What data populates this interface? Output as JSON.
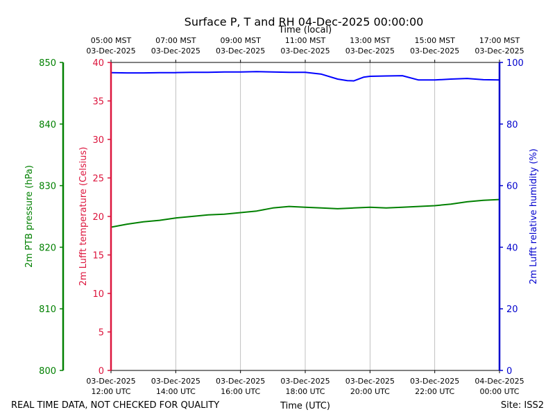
{
  "chart_data": {
    "type": "line",
    "title": "Surface P, T and RH 04-Dec-2025 00:00:00",
    "top_axis_label": "Time (local)",
    "bottom_axis_label": "Time (UTC)",
    "footer_left": "REAL TIME DATA, NOT CHECKED FOR QUALITY",
    "footer_right": "Site: ISS2",
    "grid": true,
    "x_range_utc_hours": [
      12,
      24
    ],
    "top_ticks": [
      {
        "t": 12,
        "line1": "05:00 MST",
        "line2": "03-Dec-2025"
      },
      {
        "t": 14,
        "line1": "07:00 MST",
        "line2": "03-Dec-2025"
      },
      {
        "t": 16,
        "line1": "09:00 MST",
        "line2": "03-Dec-2025"
      },
      {
        "t": 18,
        "line1": "11:00 MST",
        "line2": "03-Dec-2025"
      },
      {
        "t": 20,
        "line1": "13:00 MST",
        "line2": "03-Dec-2025"
      },
      {
        "t": 22,
        "line1": "15:00 MST",
        "line2": "03-Dec-2025"
      },
      {
        "t": 24,
        "line1": "17:00 MST",
        "line2": "03-Dec-2025"
      }
    ],
    "bottom_ticks": [
      {
        "t": 12,
        "line1": "03-Dec-2025",
        "line2": "12:00 UTC"
      },
      {
        "t": 14,
        "line1": "03-Dec-2025",
        "line2": "14:00 UTC"
      },
      {
        "t": 16,
        "line1": "03-Dec-2025",
        "line2": "16:00 UTC"
      },
      {
        "t": 18,
        "line1": "03-Dec-2025",
        "line2": "18:00 UTC"
      },
      {
        "t": 20,
        "line1": "03-Dec-2025",
        "line2": "20:00 UTC"
      },
      {
        "t": 22,
        "line1": "03-Dec-2025",
        "line2": "22:00 UTC"
      },
      {
        "t": 24,
        "line1": "04-Dec-2025",
        "line2": "00:00 UTC"
      }
    ],
    "axes": {
      "pressure": {
        "label": "2m PTB pressure (hPa)",
        "range": [
          800,
          850
        ],
        "ticks": [
          800,
          810,
          820,
          830,
          840,
          850
        ],
        "color": "#008000"
      },
      "temperature": {
        "label": "2m Lufft temperature (Celsius)",
        "range": [
          0,
          40
        ],
        "ticks": [
          0,
          5,
          10,
          15,
          20,
          25,
          30,
          35,
          40
        ],
        "color": "#dc143c"
      },
      "humidity": {
        "label": "2m Lufft relative humidity (%)",
        "range": [
          0,
          100
        ],
        "ticks": [
          0,
          20,
          40,
          60,
          80,
          100
        ],
        "color": "#0000cd"
      }
    },
    "series": [
      {
        "name": "2m Lufft temperature (Celsius)",
        "axis": "temperature",
        "color": "#008000",
        "x": [
          12.0,
          12.5,
          13.0,
          13.5,
          14.0,
          14.5,
          15.0,
          15.5,
          16.0,
          16.5,
          17.0,
          17.5,
          18.0,
          18.5,
          19.0,
          19.5,
          20.0,
          20.5,
          21.0,
          21.5,
          22.0,
          22.5,
          23.0,
          23.5,
          24.0
        ],
        "values": [
          18.6,
          19.0,
          19.3,
          19.5,
          19.8,
          20.0,
          20.2,
          20.3,
          20.5,
          20.7,
          21.1,
          21.3,
          21.2,
          21.1,
          21.0,
          21.1,
          21.2,
          21.1,
          21.2,
          21.3,
          21.4,
          21.6,
          21.9,
          22.1,
          22.2
        ]
      },
      {
        "name": "2m Lufft relative humidity (%)",
        "axis": "humidity",
        "color": "#0000ff",
        "x": [
          12.0,
          12.5,
          13.0,
          13.5,
          14.0,
          14.5,
          15.0,
          15.5,
          16.0,
          16.5,
          17.0,
          17.5,
          18.0,
          18.5,
          19.0,
          19.3,
          19.5,
          19.8,
          20.0,
          20.5,
          21.0,
          21.5,
          22.0,
          22.5,
          23.0,
          23.5,
          24.0
        ],
        "values": [
          96.7,
          96.6,
          96.6,
          96.7,
          96.7,
          96.8,
          96.8,
          96.9,
          96.9,
          97.0,
          96.9,
          96.8,
          96.8,
          96.2,
          94.6,
          94.1,
          94.0,
          95.2,
          95.5,
          95.6,
          95.7,
          94.3,
          94.3,
          94.6,
          94.8,
          94.4,
          94.3
        ]
      }
    ]
  }
}
